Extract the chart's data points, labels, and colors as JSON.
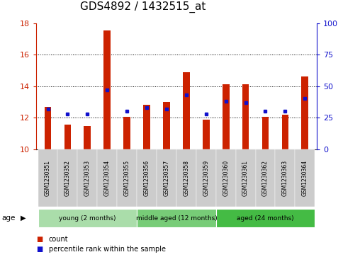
{
  "title": "GDS4892 / 1432515_at",
  "samples": [
    "GSM1230351",
    "GSM1230352",
    "GSM1230353",
    "GSM1230354",
    "GSM1230355",
    "GSM1230356",
    "GSM1230357",
    "GSM1230358",
    "GSM1230359",
    "GSM1230360",
    "GSM1230361",
    "GSM1230362",
    "GSM1230363",
    "GSM1230364"
  ],
  "count_values": [
    12.7,
    11.55,
    11.45,
    17.55,
    12.05,
    12.8,
    13.0,
    14.9,
    11.85,
    14.1,
    14.1,
    12.05,
    12.2,
    14.6
  ],
  "percentile_values": [
    32,
    28,
    28,
    47,
    30,
    33,
    32,
    43,
    28,
    38,
    37,
    30,
    30,
    40
  ],
  "ylim_left": [
    10,
    18
  ],
  "ylim_right": [
    0,
    100
  ],
  "yticks_left": [
    10,
    12,
    14,
    16,
    18
  ],
  "yticks_right": [
    0,
    25,
    50,
    75,
    100
  ],
  "bar_color": "#CC2200",
  "dot_color": "#1111CC",
  "grid_color": "#000000",
  "groups": [
    {
      "label": "young (2 months)",
      "start": 0,
      "end": 5,
      "color": "#AADDAA"
    },
    {
      "label": "middle aged (12 months)",
      "start": 5,
      "end": 9,
      "color": "#77CC77"
    },
    {
      "label": "aged (24 months)",
      "start": 9,
      "end": 14,
      "color": "#44BB44"
    }
  ],
  "age_label": "age",
  "legend_count_label": "count",
  "legend_percentile_label": "percentile rank within the sample",
  "bar_width": 0.35,
  "tick_bg_color": "#CCCCCC",
  "plot_bg_color": "#FFFFFF",
  "title_fontsize": 11,
  "axis_fontsize": 8,
  "label_fontsize": 7.5
}
